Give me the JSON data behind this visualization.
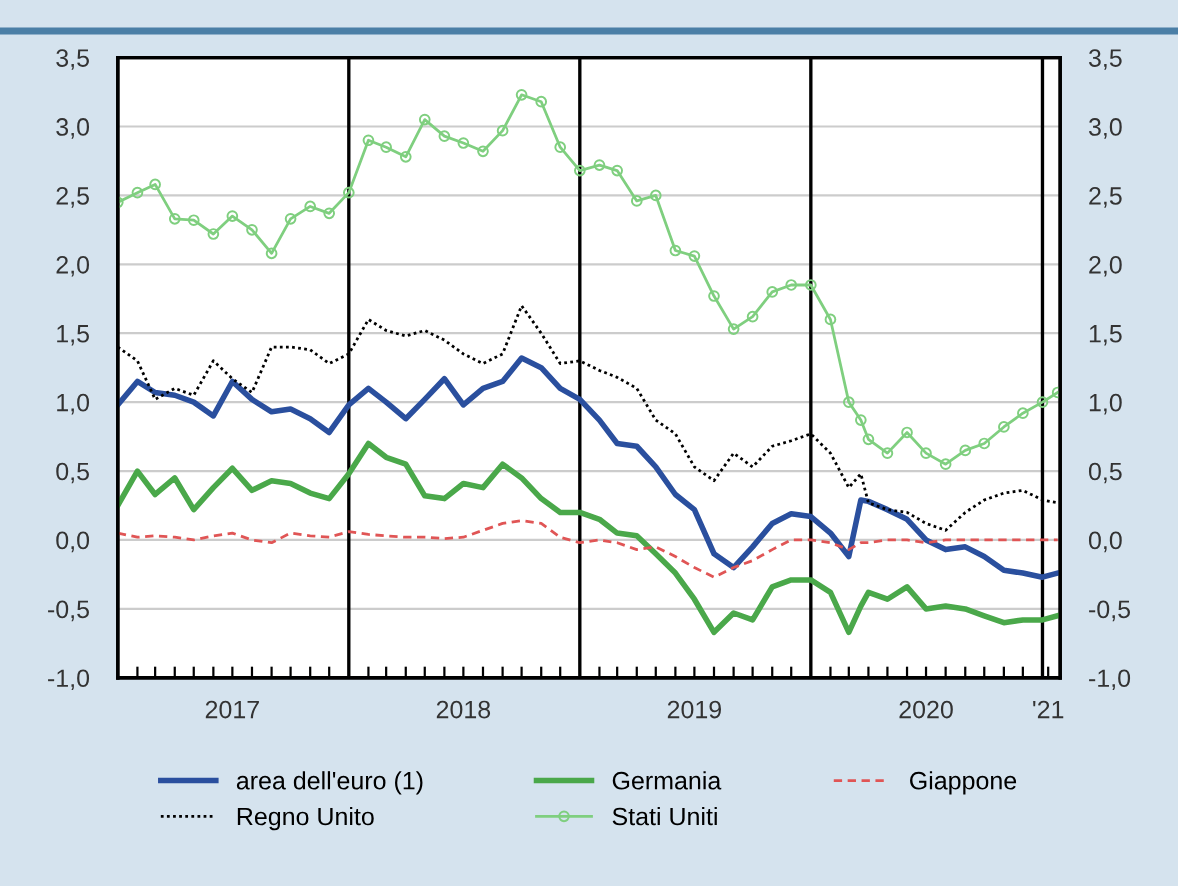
{
  "chart_data": {
    "type": "line",
    "x": [
      "2017-01-01",
      "2017-02-01",
      "2017-03-01",
      "2017-04-01",
      "2017-05-01",
      "2017-06-01",
      "2017-07-01",
      "2017-08-01",
      "2017-09-01",
      "2017-10-01",
      "2017-11-01",
      "2017-12-01",
      "2018-01-01",
      "2018-02-01",
      "2018-03-01",
      "2018-04-01",
      "2018-05-01",
      "2018-06-01",
      "2018-07-01",
      "2018-08-01",
      "2018-09-01",
      "2018-10-01",
      "2018-11-01",
      "2018-12-01",
      "2019-01-01",
      "2019-02-01",
      "2019-03-01",
      "2019-04-01",
      "2019-05-01",
      "2019-06-01",
      "2019-07-01",
      "2019-08-01",
      "2019-09-01",
      "2019-10-01",
      "2019-11-01",
      "2019-12-01",
      "2020-01-01",
      "2020-02-01",
      "2020-03-01",
      "2020-03-20",
      "2020-04-01",
      "2020-05-01",
      "2020-06-01",
      "2020-07-01",
      "2020-08-01",
      "2020-09-01",
      "2020-10-01",
      "2020-11-01",
      "2020-12-01",
      "2021-01-01",
      "2021-01-25"
    ],
    "series": [
      {
        "name": "area dell'euro (1)",
        "color": "#2a4f9e",
        "line_style": "solid",
        "values": [
          0.98,
          1.15,
          1.07,
          1.05,
          1.0,
          0.9,
          1.15,
          1.02,
          0.93,
          0.95,
          0.88,
          0.78,
          0.98,
          1.1,
          1.0,
          0.88,
          1.02,
          1.17,
          0.98,
          1.1,
          1.15,
          1.32,
          1.25,
          1.1,
          1.02,
          0.87,
          0.7,
          0.68,
          0.53,
          0.33,
          0.22,
          -0.1,
          -0.2,
          -0.05,
          0.12,
          0.19,
          0.17,
          0.05,
          -0.12,
          0.29,
          0.28,
          0.22,
          0.15,
          0.0,
          -0.07,
          -0.05,
          -0.12,
          -0.22,
          -0.24,
          -0.27,
          -0.24
        ]
      },
      {
        "name": "Germania",
        "color": "#4aa84a",
        "line_style": "solid",
        "values": [
          0.25,
          0.5,
          0.33,
          0.45,
          0.22,
          0.38,
          0.52,
          0.36,
          0.43,
          0.41,
          0.34,
          0.3,
          0.48,
          0.7,
          0.6,
          0.55,
          0.32,
          0.3,
          0.41,
          0.38,
          0.55,
          0.45,
          0.3,
          0.2,
          0.2,
          0.15,
          0.05,
          0.03,
          -0.1,
          -0.24,
          -0.43,
          -0.67,
          -0.53,
          -0.58,
          -0.34,
          -0.29,
          -0.29,
          -0.38,
          -0.67,
          -0.48,
          -0.38,
          -0.43,
          -0.34,
          -0.5,
          -0.48,
          -0.5,
          -0.55,
          -0.6,
          -0.58,
          -0.58,
          -0.55
        ]
      },
      {
        "name": "Giappone",
        "color": "#e05555",
        "line_style": "dashed",
        "values": [
          0.05,
          0.02,
          0.03,
          0.02,
          0.0,
          0.03,
          0.05,
          0.0,
          -0.02,
          0.05,
          0.03,
          0.02,
          0.06,
          0.04,
          0.03,
          0.02,
          0.02,
          0.01,
          0.02,
          0.07,
          0.12,
          0.14,
          0.12,
          0.02,
          -0.02,
          0.0,
          -0.02,
          -0.07,
          -0.05,
          -0.12,
          -0.2,
          -0.27,
          -0.2,
          -0.15,
          -0.07,
          0.0,
          0.0,
          -0.02,
          -0.07,
          -0.02,
          -0.02,
          0.0,
          0.0,
          -0.02,
          0.0,
          0.0,
          0.0,
          0.0,
          0.0,
          0.0,
          0.0
        ]
      },
      {
        "name": "Regno Unito",
        "color": "#000000",
        "line_style": "dotted",
        "values": [
          1.4,
          1.3,
          1.02,
          1.1,
          1.05,
          1.3,
          1.17,
          1.07,
          1.4,
          1.4,
          1.38,
          1.28,
          1.35,
          1.6,
          1.52,
          1.48,
          1.52,
          1.45,
          1.35,
          1.28,
          1.35,
          1.7,
          1.5,
          1.28,
          1.3,
          1.23,
          1.18,
          1.1,
          0.87,
          0.77,
          0.53,
          0.43,
          0.63,
          0.53,
          0.68,
          0.72,
          0.77,
          0.63,
          0.38,
          0.48,
          0.27,
          0.22,
          0.2,
          0.12,
          0.07,
          0.2,
          0.29,
          0.34,
          0.36,
          0.29,
          0.27
        ]
      },
      {
        "name": "Stati Uniti",
        "color": "#7fcf7f",
        "line_style": "solid",
        "marker": "circle",
        "values": [
          2.45,
          2.52,
          2.58,
          2.33,
          2.32,
          2.22,
          2.35,
          2.25,
          2.08,
          2.33,
          2.42,
          2.37,
          2.52,
          2.9,
          2.85,
          2.78,
          3.05,
          2.93,
          2.88,
          2.82,
          2.97,
          3.23,
          3.18,
          2.85,
          2.68,
          2.72,
          2.68,
          2.46,
          2.5,
          2.1,
          2.06,
          1.77,
          1.53,
          1.62,
          1.8,
          1.85,
          1.85,
          1.6,
          1.0,
          0.87,
          0.73,
          0.63,
          0.78,
          0.63,
          0.55,
          0.65,
          0.7,
          0.82,
          0.92,
          1.0,
          1.07
        ]
      }
    ],
    "xlim": [
      "2017-01-01",
      "2021-01-29"
    ],
    "xticks": [
      {
        "value": "2017-02-01",
        "label": null
      },
      {
        "value": "2017-03-01",
        "label": null
      },
      {
        "value": "2017-04-01",
        "label": null
      },
      {
        "value": "2017-05-01",
        "label": null
      },
      {
        "value": "2017-06-01",
        "label": null
      },
      {
        "value": "2017-07-01",
        "label": "2017"
      },
      {
        "value": "2017-08-01",
        "label": null
      },
      {
        "value": "2017-09-01",
        "label": null
      },
      {
        "value": "2017-10-01",
        "label": null
      },
      {
        "value": "2017-11-01",
        "label": null
      },
      {
        "value": "2017-12-01",
        "label": null
      },
      {
        "value": "2018-02-01",
        "label": null
      },
      {
        "value": "2018-03-01",
        "label": null
      },
      {
        "value": "2018-04-01",
        "label": null
      },
      {
        "value": "2018-05-01",
        "label": null
      },
      {
        "value": "2018-06-01",
        "label": null
      },
      {
        "value": "2018-07-01",
        "label": "2018"
      },
      {
        "value": "2018-08-01",
        "label": null
      },
      {
        "value": "2018-09-01",
        "label": null
      },
      {
        "value": "2018-10-01",
        "label": null
      },
      {
        "value": "2018-11-01",
        "label": null
      },
      {
        "value": "2018-12-01",
        "label": null
      },
      {
        "value": "2019-02-01",
        "label": null
      },
      {
        "value": "2019-03-01",
        "label": null
      },
      {
        "value": "2019-04-01",
        "label": null
      },
      {
        "value": "2019-05-01",
        "label": null
      },
      {
        "value": "2019-06-01",
        "label": null
      },
      {
        "value": "2019-07-01",
        "label": "2019"
      },
      {
        "value": "2019-08-01",
        "label": null
      },
      {
        "value": "2019-09-01",
        "label": null
      },
      {
        "value": "2019-10-01",
        "label": null
      },
      {
        "value": "2019-11-01",
        "label": null
      },
      {
        "value": "2019-12-01",
        "label": null
      },
      {
        "value": "2020-02-01",
        "label": null
      },
      {
        "value": "2020-03-01",
        "label": null
      },
      {
        "value": "2020-04-01",
        "label": null
      },
      {
        "value": "2020-05-01",
        "label": null
      },
      {
        "value": "2020-06-01",
        "label": null
      },
      {
        "value": "2020-07-01",
        "label": "2020"
      },
      {
        "value": "2020-08-01",
        "label": null
      },
      {
        "value": "2020-09-01",
        "label": null
      },
      {
        "value": "2020-10-01",
        "label": null
      },
      {
        "value": "2020-11-01",
        "label": null
      },
      {
        "value": "2020-12-01",
        "label": null
      },
      {
        "value": "2021-01-10",
        "label": "'21"
      }
    ],
    "ylim": [
      -1.0,
      3.5
    ],
    "yticks": [
      {
        "value": -1.0,
        "label": "-1,0"
      },
      {
        "value": -0.5,
        "label": "-0,5"
      },
      {
        "value": 0.0,
        "label": "0,0"
      },
      {
        "value": 0.5,
        "label": "0,5"
      },
      {
        "value": 1.0,
        "label": "1,0"
      },
      {
        "value": 1.5,
        "label": "1,5"
      },
      {
        "value": 2.0,
        "label": "2,0"
      },
      {
        "value": 2.5,
        "label": "2,5"
      },
      {
        "value": 3.0,
        "label": "3,0"
      },
      {
        "value": 3.5,
        "label": "3,5"
      }
    ],
    "y2lim": [
      -1.0,
      3.5
    ],
    "y2ticks": [
      {
        "value": -1.0,
        "label": "-1,0"
      },
      {
        "value": -0.5,
        "label": "-0,5"
      },
      {
        "value": 0.0,
        "label": "0,0"
      },
      {
        "value": 0.5,
        "label": "0,5"
      },
      {
        "value": 1.0,
        "label": "1,0"
      },
      {
        "value": 1.5,
        "label": "1,5"
      },
      {
        "value": 2.0,
        "label": "2,0"
      },
      {
        "value": 2.5,
        "label": "2,5"
      },
      {
        "value": 3.0,
        "label": "3,0"
      },
      {
        "value": 3.5,
        "label": "3,5"
      }
    ],
    "ref_lines": [
      {
        "axis": "x",
        "value": "2018-01-01",
        "color": "#000000"
      },
      {
        "axis": "x",
        "value": "2019-01-01",
        "color": "#000000"
      },
      {
        "axis": "x",
        "value": "2020-01-01",
        "color": "#000000"
      },
      {
        "axis": "x",
        "value": "2021-01-01",
        "color": "#000000"
      }
    ],
    "grid": "y",
    "legend": "bottom"
  }
}
